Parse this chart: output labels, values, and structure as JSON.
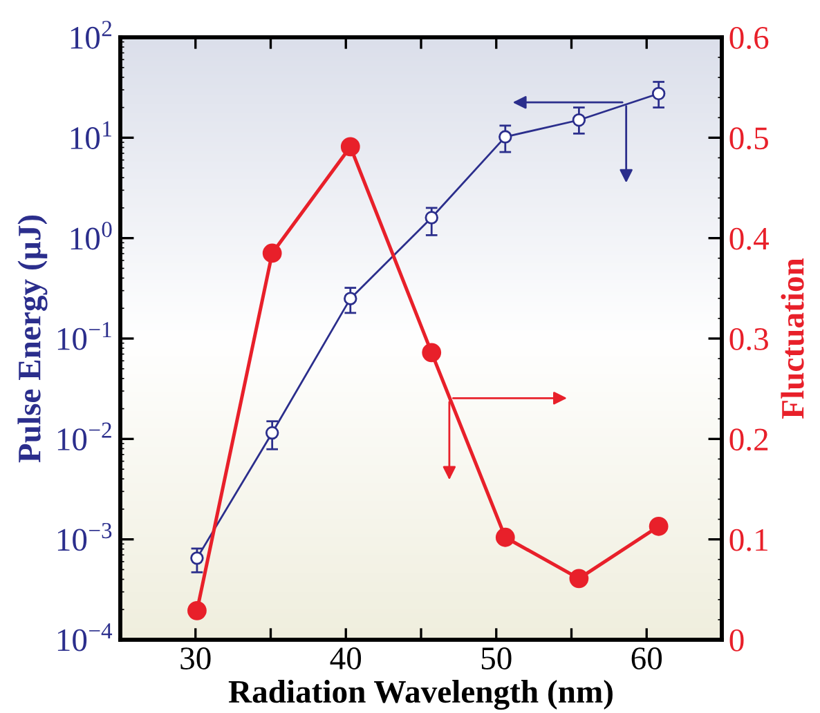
{
  "chart_data": {
    "type": "line",
    "xlabel": "Radiation Wavelength (nm)",
    "ylabel": "Pulse Energy (µJ)",
    "y2label": "Fluctuation",
    "x": [
      30.1,
      35.1,
      40.3,
      45.7,
      50.6,
      55.5,
      60.8
    ],
    "series": [
      {
        "color": "#2b2e8c",
        "marker": "circle",
        "values": [
          0.00065,
          0.0115,
          0.25,
          1.6,
          10.2,
          15,
          27.5
        ],
        "errors": [
          [
            0.00047,
            0.00081
          ],
          [
            0.0079,
            0.015
          ],
          [
            0.18,
            0.32
          ],
          [
            1.07,
            2.0
          ],
          [
            7.2,
            13.2
          ],
          [
            11,
            20
          ],
          [
            20,
            36
          ]
        ]
      },
      {
        "color": "#e8202a",
        "marker": "circle",
        "axis": "y2",
        "values": [
          0.029,
          0.385,
          0.491,
          0.286,
          0.102,
          0.061,
          0.113
        ]
      }
    ],
    "xlim": [
      25,
      65
    ],
    "xticks": [
      30,
      {
        "value": 35,
        "label": null
      },
      40,
      {
        "value": 45,
        "label": null
      },
      50,
      {
        "value": 55,
        "label": null
      },
      60
    ],
    "log": "y",
    "ylim": [
      0.0001,
      100
    ],
    "yticks": [
      {
        "value": 0.0001,
        "label": "10$^{−4}$"
      },
      {
        "value": 0.001,
        "label": "10$^{−3}$"
      },
      {
        "value": 0.01,
        "label": "10$^{−2}$"
      },
      {
        "value": 0.1,
        "label": "10$^{−1}$"
      },
      {
        "value": 1,
        "label": "10$^{0}$"
      },
      {
        "value": 10,
        "label": "10$^{1}$"
      },
      {
        "value": 100,
        "label": "10$^{2}$"
      }
    ],
    "y2lim": [
      0,
      0.6
    ],
    "y2ticks": [
      0,
      0.1,
      0.2,
      0.3,
      0.4,
      0.5,
      0.6
    ],
    "grid": false,
    "legend": false
  }
}
